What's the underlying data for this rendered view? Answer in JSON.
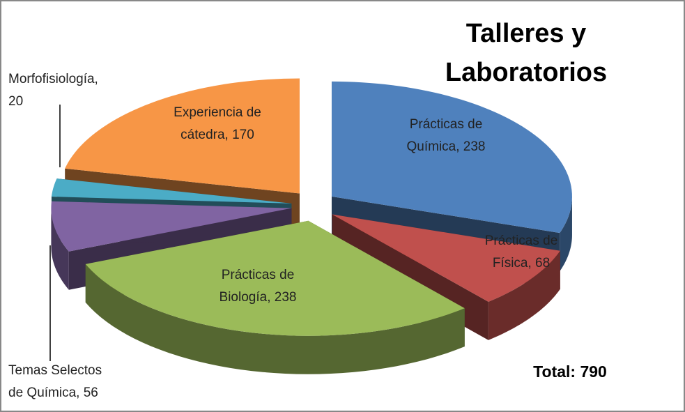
{
  "chart_data": {
    "type": "pie3d",
    "title": "Talleres y Laboratorios",
    "annotation": "Total: 790",
    "categories": [
      "Prácticas de Química",
      "Prácticas de Física",
      "Prácticas de Biología",
      "Temas Selectos de Química",
      "Morfofisiología",
      "Experiencia de cátedra"
    ],
    "values": [
      238,
      68,
      238,
      56,
      20,
      170
    ],
    "value_labels": [
      "Prácticas de Química, 238",
      "Prácticas de Física, 68",
      "Prácticas de Biología, 238",
      "Temas Selectos de Química, 56",
      "Morfofisiología, 20",
      "Experiencia de cátedra, 170"
    ],
    "colors": [
      "#4f81bd",
      "#c0504d",
      "#9bbb59",
      "#8064a2",
      "#4bacc6",
      "#f79646"
    ]
  }
}
